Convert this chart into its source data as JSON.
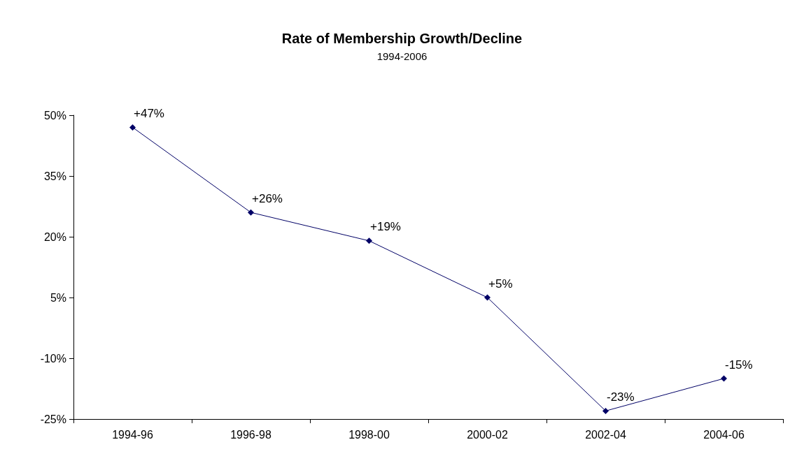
{
  "chart_data": {
    "type": "line",
    "title": "Rate of Membership Growth/Decline",
    "subtitle": "1994-2006",
    "categories": [
      "1994-96",
      "1996-98",
      "1998-00",
      "2000-02",
      "2002-04",
      "2004-06"
    ],
    "series": [
      {
        "color": "#000066",
        "values": [
          47,
          26,
          19,
          5,
          -23,
          -15
        ],
        "value_labels": [
          "+47%",
          "+26%",
          "+19%",
          "+5%",
          "-23%",
          "-15%"
        ]
      }
    ],
    "ylim": [
      -25,
      50
    ],
    "yticks": [
      {
        "value": -25,
        "label": "-25%"
      },
      {
        "value": -10,
        "label": "-10%"
      },
      {
        "value": 5,
        "label": "5%"
      },
      {
        "value": 20,
        "label": "20%"
      },
      {
        "value": 35,
        "label": "35%"
      },
      {
        "value": 50,
        "label": "50%"
      }
    ],
    "grid": false,
    "marker": "diamond",
    "line_style": "solid"
  }
}
